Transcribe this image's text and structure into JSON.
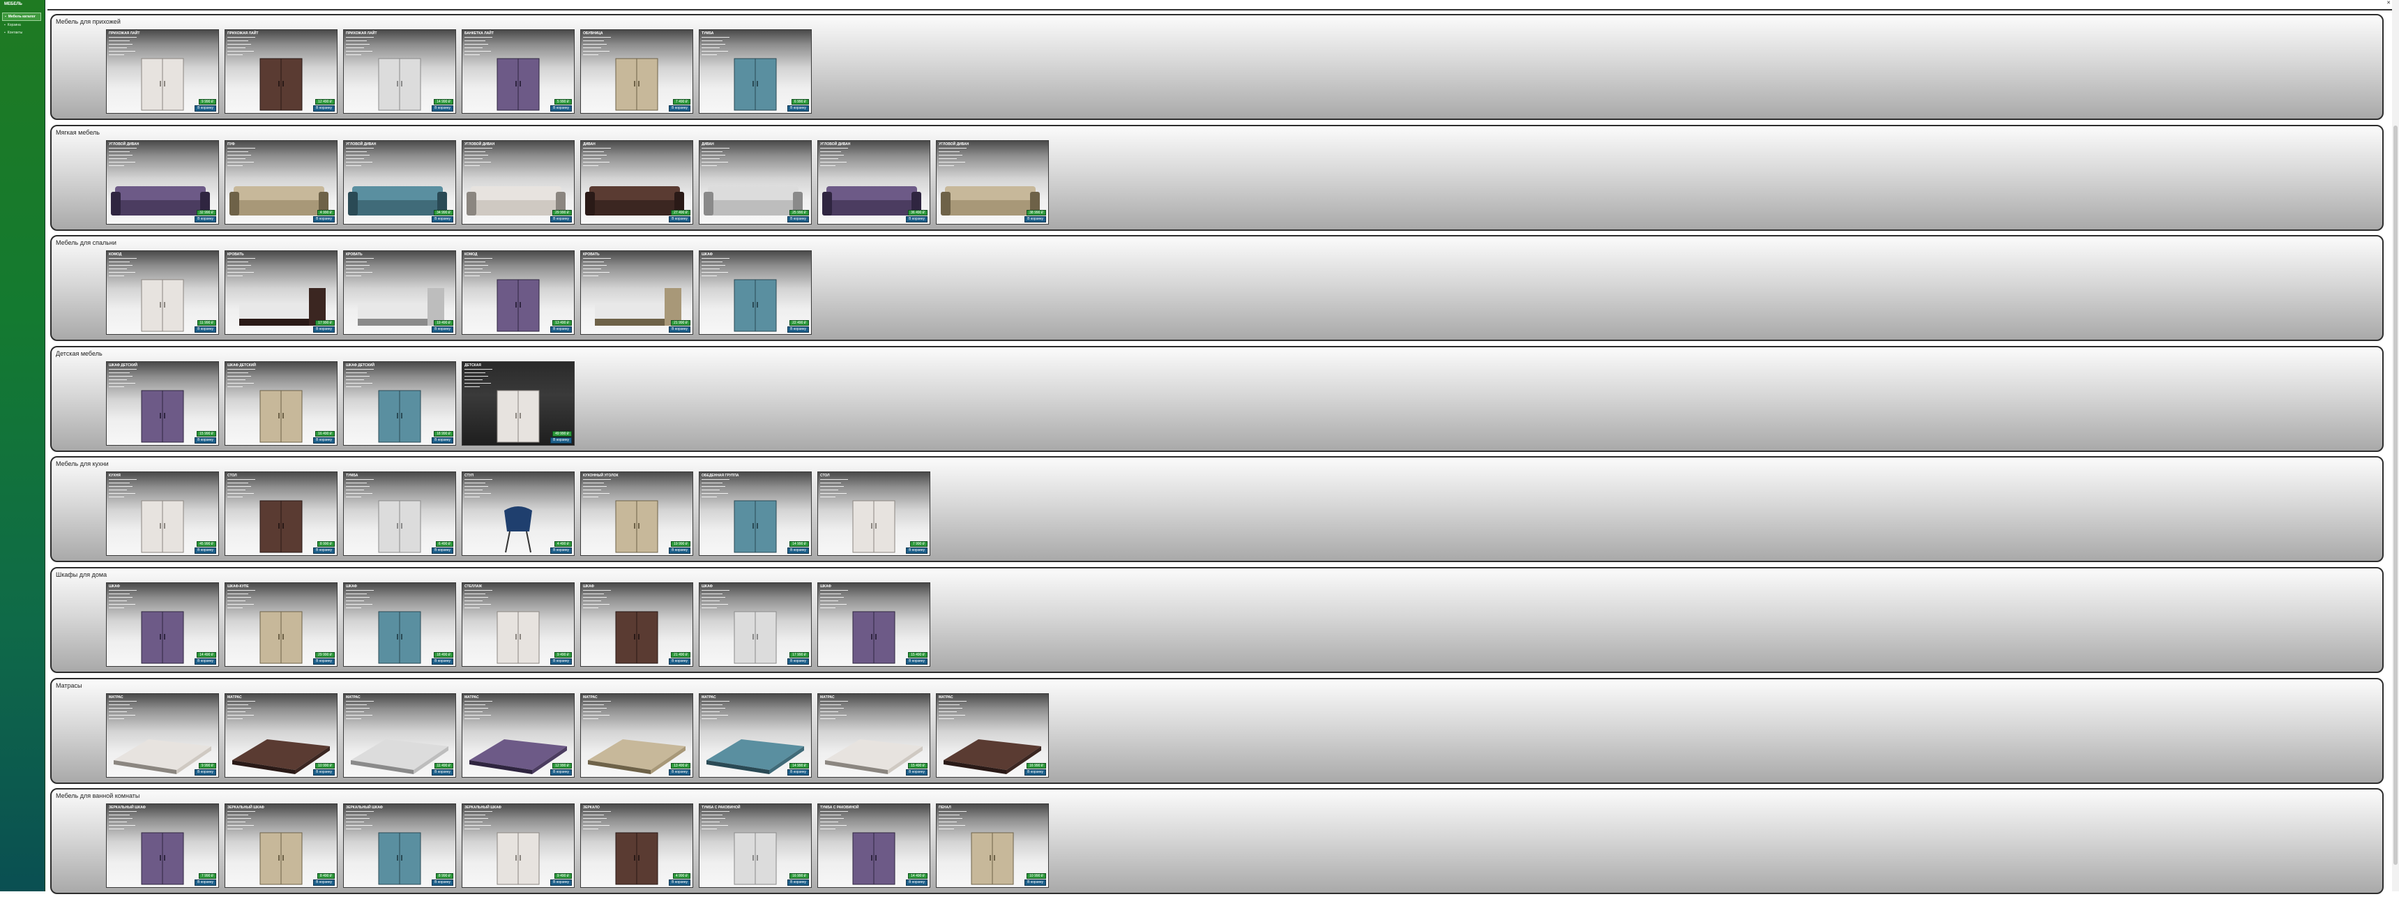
{
  "sidebar": {
    "logo": "МЕБЕЛЬ",
    "menu": [
      {
        "label": "Мебель каталог",
        "icon": "sofa-icon",
        "active": true
      },
      {
        "label": "Корзина",
        "icon": "cart-icon",
        "active": false
      },
      {
        "label": "Контакты",
        "icon": "phone-icon",
        "active": false
      }
    ]
  },
  "topbar": {
    "close": "✕"
  },
  "buttons": {
    "order": "В корзину"
  },
  "categories": [
    {
      "title": "Мебель для прихожей",
      "items": [
        {
          "name": "Прихожая Лайт",
          "price": "9 990 ₽"
        },
        {
          "name": "Прихожая Лайт",
          "price": "12 490 ₽"
        },
        {
          "name": "Прихожая Лайт",
          "price": "14 990 ₽"
        },
        {
          "name": "Банкетка Лайт",
          "price": "5 990 ₽"
        },
        {
          "name": "Обувница",
          "price": "7 490 ₽"
        },
        {
          "name": "Тумба",
          "price": "6 990 ₽"
        }
      ]
    },
    {
      "title": "Мягкая мебель",
      "items": [
        {
          "name": "Угловой диван",
          "price": "32 990 ₽"
        },
        {
          "name": "Пуф",
          "price": "4 990 ₽"
        },
        {
          "name": "Угловой диван",
          "price": "34 990 ₽"
        },
        {
          "name": "Угловой диван",
          "price": "29 990 ₽"
        },
        {
          "name": "Диван",
          "price": "27 490 ₽"
        },
        {
          "name": "Диван",
          "price": "25 990 ₽"
        },
        {
          "name": "Угловой диван",
          "price": "36 490 ₽"
        },
        {
          "name": "Угловой диван",
          "price": "38 990 ₽"
        }
      ]
    },
    {
      "title": "Мебель для спальни",
      "items": [
        {
          "name": "Комод",
          "price": "11 990 ₽"
        },
        {
          "name": "Кровать",
          "price": "17 990 ₽"
        },
        {
          "name": "Кровать",
          "price": "19 490 ₽"
        },
        {
          "name": "Комод",
          "price": "13 490 ₽"
        },
        {
          "name": "Кровать",
          "price": "21 990 ₽"
        },
        {
          "name": "Шкаф",
          "price": "22 490 ₽"
        }
      ]
    },
    {
      "title": "Детская мебель",
      "items": [
        {
          "name": "Шкаф детский",
          "price": "15 990 ₽"
        },
        {
          "name": "Шкаф детский",
          "price": "16 490 ₽"
        },
        {
          "name": "Шкаф детский",
          "price": "18 990 ₽"
        },
        {
          "name": "Детская",
          "price": "49 990 ₽"
        }
      ]
    },
    {
      "title": "Мебель для кухни",
      "items": [
        {
          "name": "Кухня",
          "price": "45 990 ₽"
        },
        {
          "name": "Стол",
          "price": "8 990 ₽"
        },
        {
          "name": "Тумба",
          "price": "6 490 ₽"
        },
        {
          "name": "Стул",
          "price": "4 490 ₽"
        },
        {
          "name": "Кухонный уголок",
          "price": "19 990 ₽"
        },
        {
          "name": "Обеденная группа",
          "price": "14 990 ₽"
        },
        {
          "name": "Стол",
          "price": "7 990 ₽"
        }
      ]
    },
    {
      "title": "Шкафы для дома",
      "items": [
        {
          "name": "Шкаф",
          "price": "14 490 ₽"
        },
        {
          "name": "Шкаф-купе",
          "price": "29 990 ₽"
        },
        {
          "name": "Шкаф",
          "price": "18 490 ₽"
        },
        {
          "name": "Стеллаж",
          "price": "9 490 ₽"
        },
        {
          "name": "Шкаф",
          "price": "21 490 ₽"
        },
        {
          "name": "Шкаф",
          "price": "17 990 ₽"
        },
        {
          "name": "Шкаф",
          "price": "15 490 ₽"
        }
      ]
    },
    {
      "title": "Матрасы",
      "items": [
        {
          "name": "Матрас",
          "price": "9 990 ₽"
        },
        {
          "name": "Матрас",
          "price": "10 990 ₽"
        },
        {
          "name": "Матрас",
          "price": "11 490 ₽"
        },
        {
          "name": "Матрас",
          "price": "12 990 ₽"
        },
        {
          "name": "Матрас",
          "price": "13 490 ₽"
        },
        {
          "name": "Матрас",
          "price": "14 990 ₽"
        },
        {
          "name": "Матрас",
          "price": "15 490 ₽"
        },
        {
          "name": "Матрас",
          "price": "16 990 ₽"
        }
      ]
    },
    {
      "title": "Мебель для ванной комнаты",
      "items": [
        {
          "name": "Зеркальный шкаф",
          "price": "7 990 ₽"
        },
        {
          "name": "Зеркальный шкаф",
          "price": "8 490 ₽"
        },
        {
          "name": "Зеркальный шкаф",
          "price": "8 990 ₽"
        },
        {
          "name": "Зеркальный шкаф",
          "price": "9 490 ₽"
        },
        {
          "name": "Зеркало",
          "price": "4 990 ₽"
        },
        {
          "name": "Тумба с раковиной",
          "price": "16 990 ₽"
        },
        {
          "name": "Тумба с раковиной",
          "price": "14 490 ₽"
        },
        {
          "name": "Пенал",
          "price": "10 990 ₽"
        }
      ]
    }
  ]
}
